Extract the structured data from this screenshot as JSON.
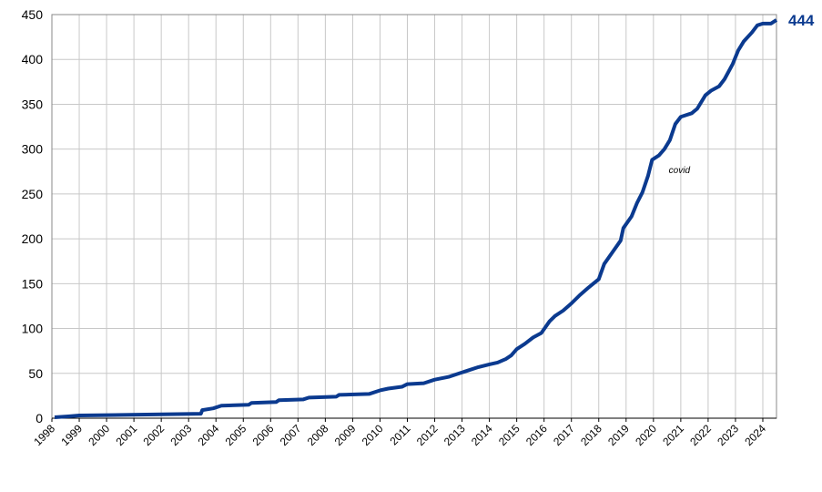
{
  "chart_data": {
    "type": "line",
    "x": [
      1998.1,
      1998.6,
      1999.0,
      2003.45,
      2003.5,
      2003.9,
      2004.2,
      2005.2,
      2005.3,
      2006.2,
      2006.3,
      2007.2,
      2007.4,
      2008.4,
      2008.5,
      2009.6,
      2010.0,
      2010.3,
      2010.8,
      2011.0,
      2011.6,
      2012.0,
      2012.5,
      2012.9,
      2013.2,
      2013.6,
      2014.0,
      2014.3,
      2014.6,
      2014.8,
      2015.0,
      2015.3,
      2015.6,
      2015.9,
      2016.2,
      2016.4,
      2016.7,
      2017.0,
      2017.3,
      2017.6,
      2017.8,
      2018.0,
      2018.2,
      2018.5,
      2018.8,
      2018.9,
      2019.2,
      2019.4,
      2019.6,
      2019.8,
      2019.95,
      2020.2,
      2020.4,
      2020.6,
      2020.8,
      2021.0,
      2021.4,
      2021.6,
      2021.9,
      2022.1,
      2022.4,
      2022.6,
      2022.9,
      2023.1,
      2023.3,
      2023.6,
      2023.8,
      2024.0,
      2024.3,
      2024.5
    ],
    "series": [
      {
        "color": "#0b3a8f",
        "values": [
          1,
          2,
          3,
          5,
          9,
          11,
          14,
          15,
          17,
          18,
          20,
          21,
          23,
          24,
          26,
          27,
          31,
          33,
          35,
          38,
          39,
          43,
          46,
          50,
          53,
          57,
          60,
          62,
          66,
          70,
          77,
          83,
          90,
          95,
          108,
          114,
          120,
          128,
          137,
          145,
          150,
          155,
          172,
          185,
          198,
          212,
          225,
          240,
          252,
          270,
          288,
          293,
          300,
          310,
          328,
          336,
          340,
          345,
          360,
          365,
          370,
          378,
          395,
          410,
          420,
          430,
          438,
          440,
          440,
          444
        ]
      }
    ],
    "xlim": [
      1998,
      2024.5
    ],
    "xticks": [
      1998,
      1999,
      2000,
      2001,
      2002,
      2003,
      2004,
      2005,
      2006,
      2007,
      2008,
      2009,
      2010,
      2011,
      2012,
      2013,
      2014,
      2015,
      2016,
      2017,
      2018,
      2019,
      2020,
      2021,
      2022,
      2023,
      2024
    ],
    "ylim": [
      0,
      450
    ],
    "yticks": [
      0,
      50,
      100,
      150,
      200,
      250,
      300,
      350,
      400,
      450
    ],
    "grid": true,
    "annotations": [
      {
        "text": "covid",
        "x": 2020.95,
        "y": 273
      }
    ]
  }
}
